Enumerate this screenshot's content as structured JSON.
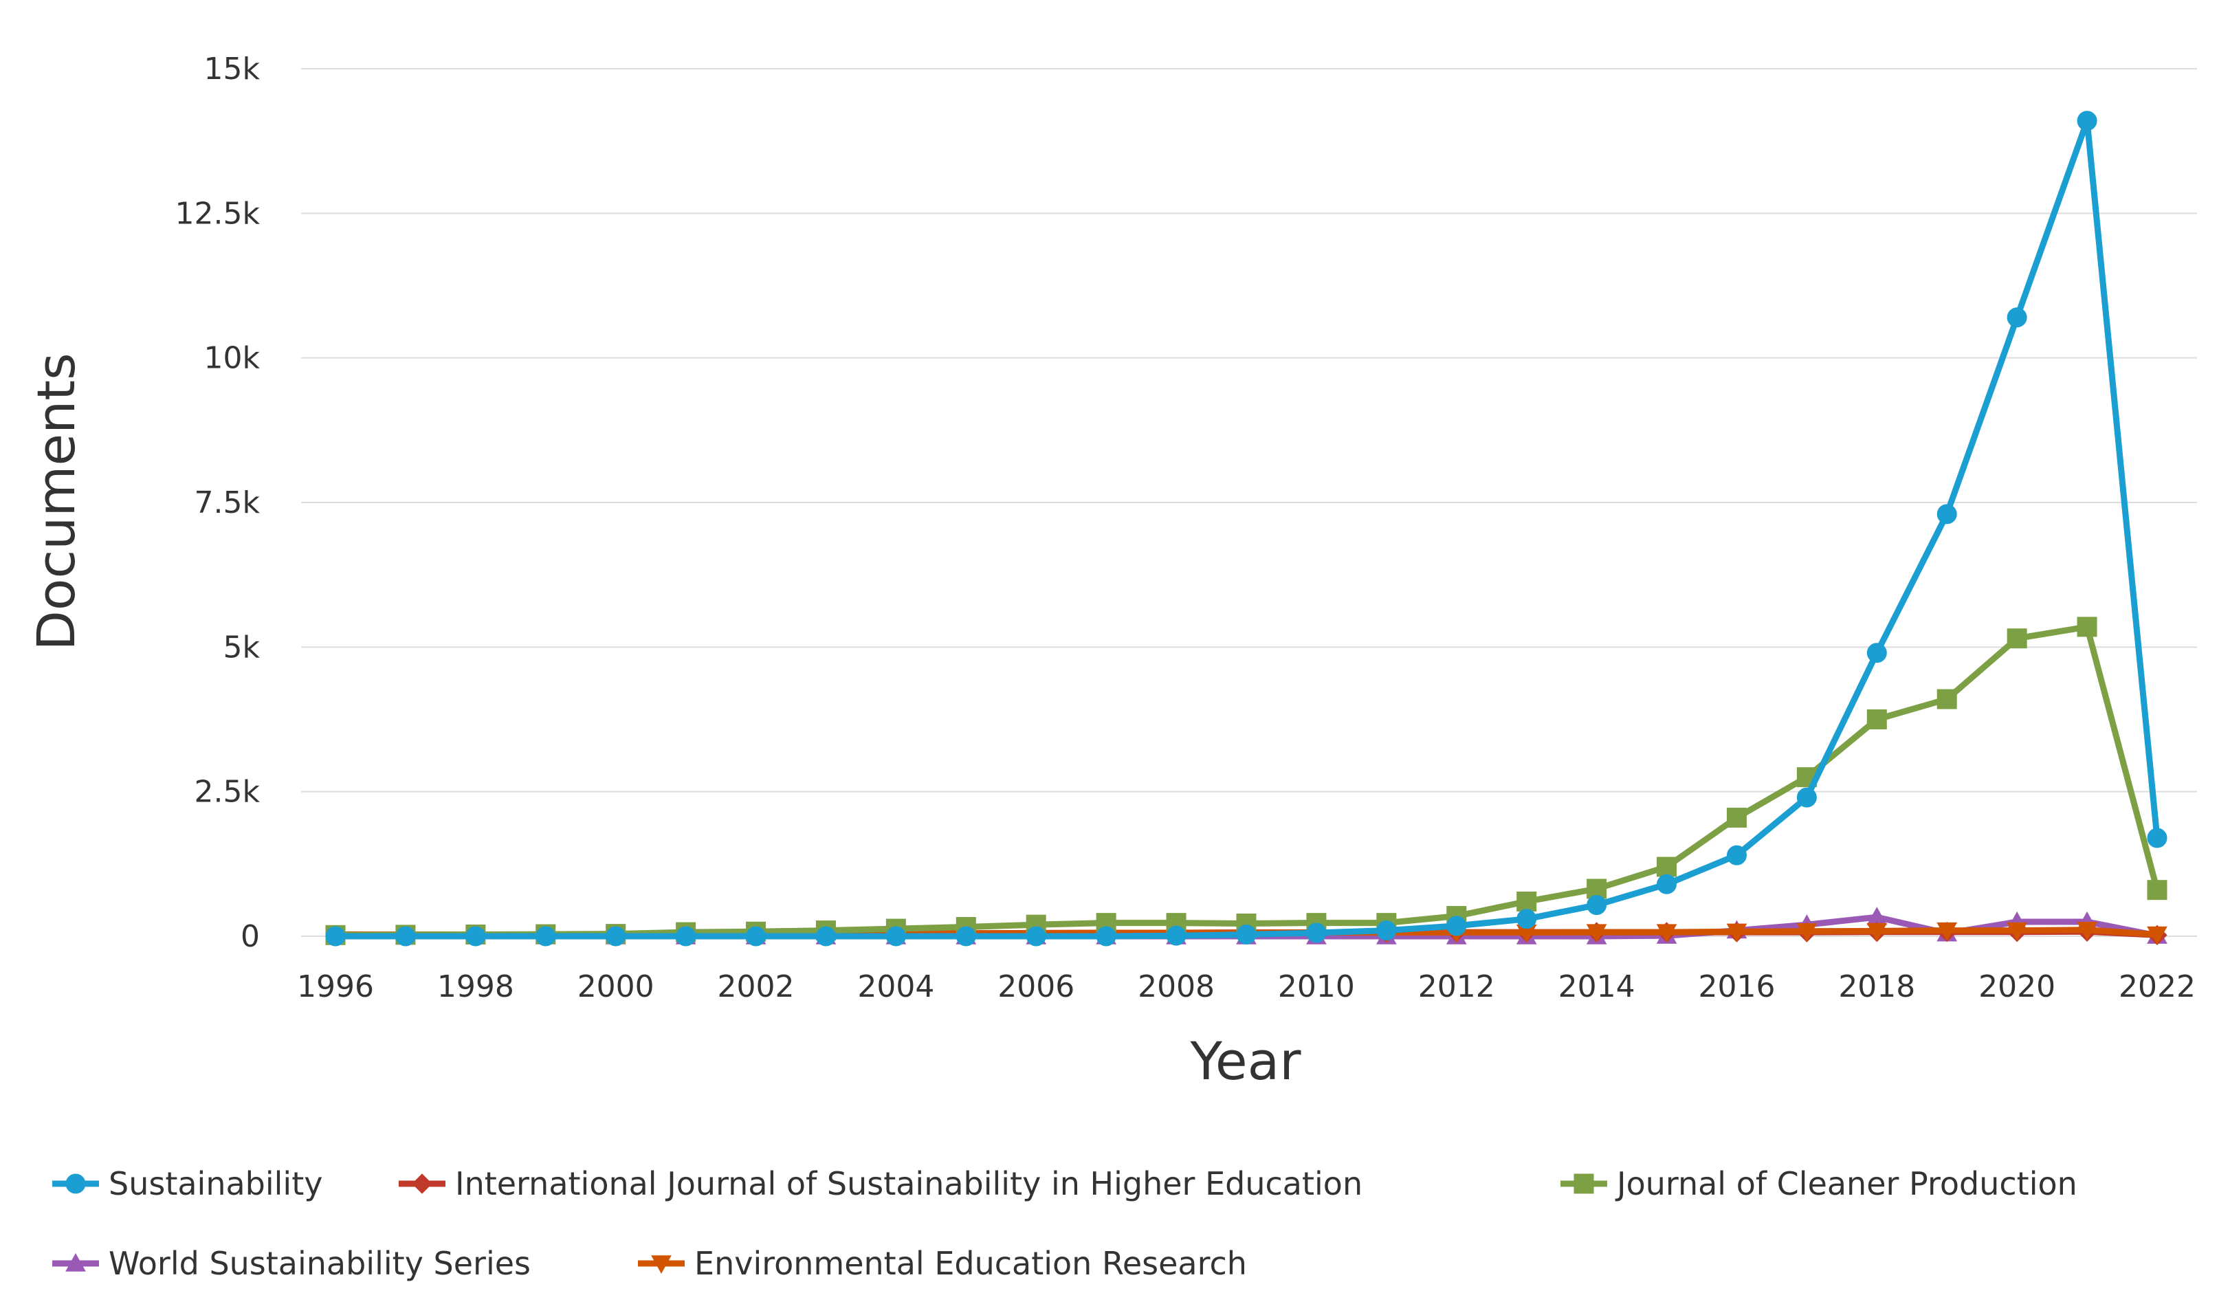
{
  "chart_data": {
    "type": "line",
    "title": "",
    "xlabel": "Year",
    "ylabel": "Documents",
    "ylim": [
      0,
      15000
    ],
    "xlim": [
      1996,
      2022
    ],
    "grid": true,
    "legend": "bottom",
    "y_ticks": [
      {
        "value": 0,
        "label": "0"
      },
      {
        "value": 2500,
        "label": "2.5k"
      },
      {
        "value": 5000,
        "label": "5k"
      },
      {
        "value": 7500,
        "label": "7.5k"
      },
      {
        "value": 10000,
        "label": "10k"
      },
      {
        "value": 12500,
        "label": "12.5k"
      },
      {
        "value": 15000,
        "label": "15k"
      }
    ],
    "x_ticks": [
      "1996",
      "1998",
      "2000",
      "2002",
      "2004",
      "2006",
      "2008",
      "2010",
      "2012",
      "2014",
      "2016",
      "2018",
      "2020",
      "2022"
    ],
    "x": [
      1996,
      1997,
      1998,
      1999,
      2000,
      2001,
      2002,
      2003,
      2004,
      2005,
      2006,
      2007,
      2008,
      2009,
      2010,
      2011,
      2012,
      2013,
      2014,
      2015,
      2016,
      2017,
      2018,
      2019,
      2020,
      2021,
      2022
    ],
    "series": [
      {
        "name": "Sustainability",
        "color": "#1b9ed2",
        "marker": "circle",
        "values": [
          0,
          0,
          0,
          0,
          0,
          0,
          0,
          0,
          0,
          0,
          0,
          0,
          10,
          30,
          60,
          100,
          180,
          300,
          540,
          900,
          1400,
          2400,
          4900,
          7300,
          10700,
          14100,
          1700
        ]
      },
      {
        "name": "International Journal of Sustainability in Higher Education",
        "color": "#c0392b",
        "marker": "diamond",
        "values": [
          0,
          0,
          0,
          0,
          0,
          30,
          35,
          40,
          45,
          50,
          55,
          60,
          60,
          65,
          65,
          65,
          70,
          70,
          70,
          70,
          70,
          70,
          75,
          75,
          75,
          80,
          20
        ]
      },
      {
        "name": "Journal of Cleaner Production",
        "color": "#7da045",
        "marker": "square",
        "values": [
          20,
          25,
          30,
          35,
          40,
          70,
          80,
          100,
          130,
          160,
          200,
          230,
          230,
          220,
          230,
          230,
          350,
          600,
          820,
          1200,
          2050,
          2750,
          3750,
          4100,
          5150,
          5350,
          800
        ]
      },
      {
        "name": "World Sustainability Series",
        "color": "#9b59b6",
        "marker": "triangle-up",
        "values": [
          0,
          0,
          0,
          0,
          0,
          0,
          0,
          0,
          0,
          0,
          0,
          0,
          0,
          0,
          0,
          0,
          0,
          0,
          0,
          10,
          100,
          200,
          330,
          50,
          250,
          250,
          10
        ]
      },
      {
        "name": "Environmental Education Research",
        "color": "#d35400",
        "marker": "triangle-down",
        "values": [
          30,
          30,
          30,
          30,
          30,
          40,
          40,
          45,
          50,
          50,
          55,
          60,
          60,
          60,
          65,
          65,
          65,
          65,
          70,
          70,
          80,
          85,
          90,
          100,
          100,
          110,
          30
        ]
      }
    ]
  }
}
